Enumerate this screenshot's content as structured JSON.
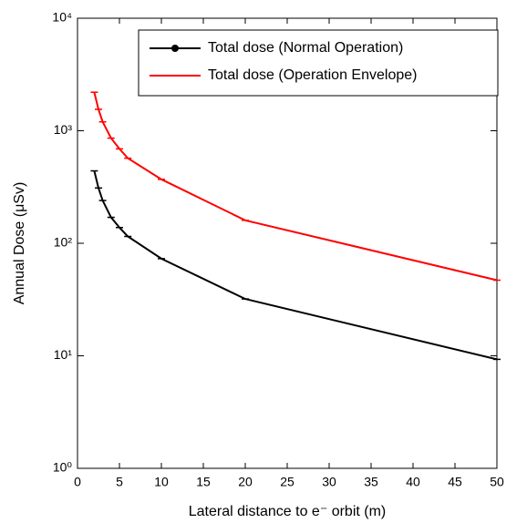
{
  "chart_data": {
    "type": "line",
    "x_label": "Lateral distance to e⁻ orbit (m)",
    "y_label": "Annual Dose (μSv)",
    "x": [
      2,
      2.5,
      3,
      4,
      5,
      6,
      10,
      20,
      50
    ],
    "series": [
      {
        "name": "Total dose (Normal Operation)",
        "color": "#000000",
        "values": [
          440,
          310,
          240,
          170,
          138,
          115,
          73,
          32,
          9.3
        ]
      },
      {
        "name": "Total dose (Operation Envelope)",
        "color": "#ff0000",
        "values": [
          2200,
          1550,
          1200,
          860,
          690,
          570,
          370,
          160,
          47
        ]
      }
    ],
    "xlim": [
      0,
      50
    ],
    "xticks": [
      0,
      5,
      10,
      15,
      20,
      25,
      30,
      35,
      40,
      45,
      50
    ],
    "ylim": [
      1,
      10000
    ],
    "yticks": [
      {
        "value": 1,
        "label": "10⁰"
      },
      {
        "value": 10,
        "label": "10¹"
      },
      {
        "value": 100,
        "label": "10²"
      },
      {
        "value": 1000,
        "label": "10³"
      },
      {
        "value": 10000,
        "label": "10⁴"
      }
    ],
    "log_y": true,
    "legend": "top-right"
  }
}
